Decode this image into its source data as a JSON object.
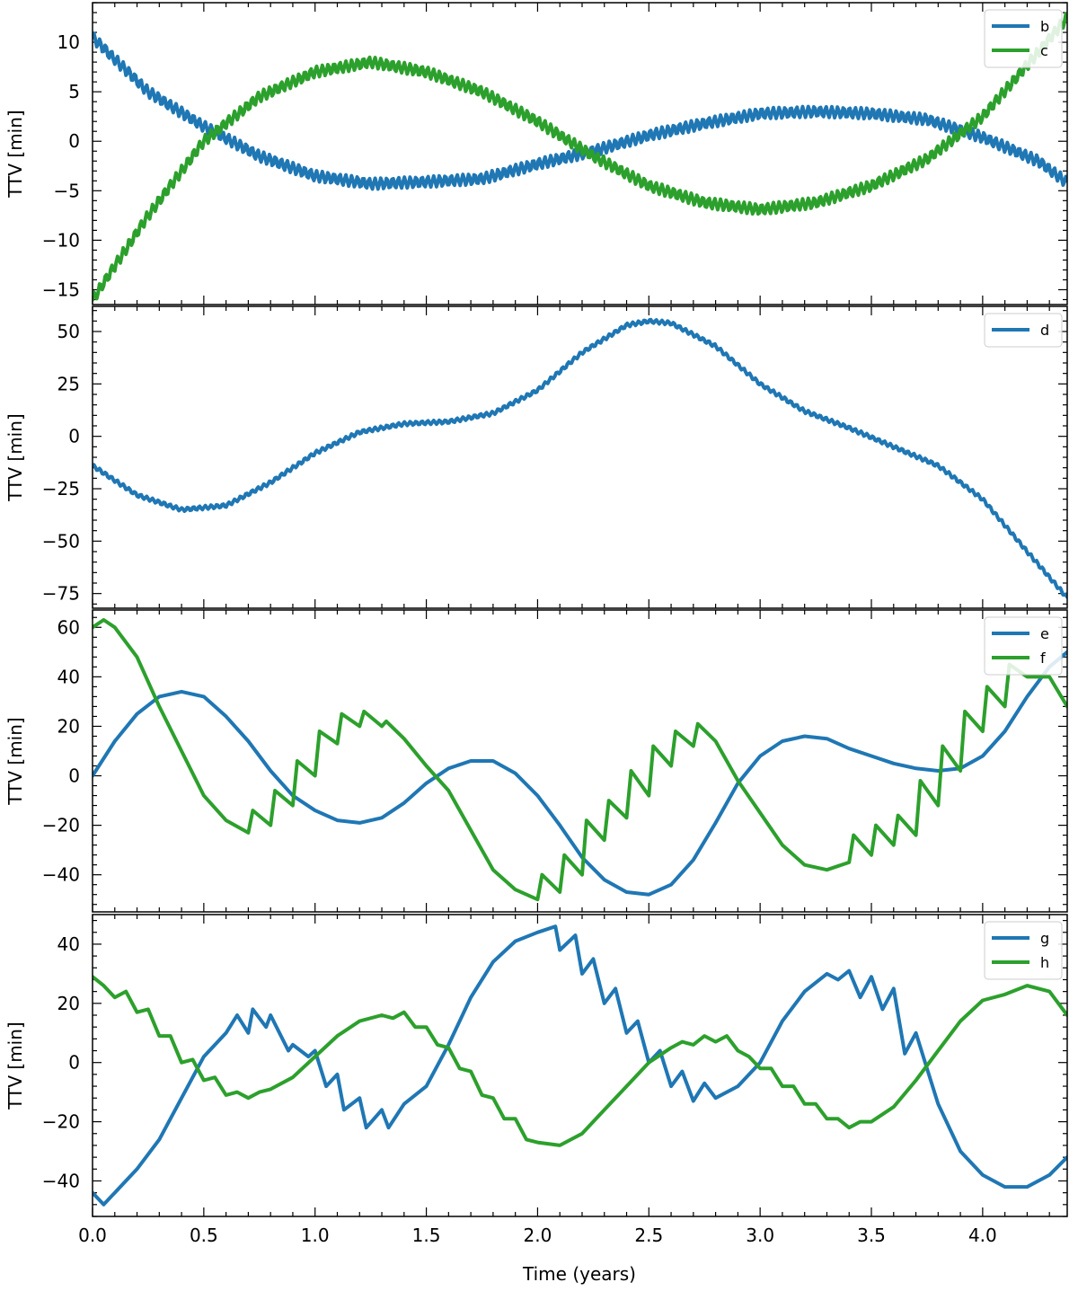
{
  "chart_data": [
    {
      "type": "line",
      "ylabel": "TTV [min]",
      "xlim": [
        0,
        4.38
      ],
      "ylim": [
        -16.5,
        14
      ],
      "yticks": [
        -15,
        -10,
        -5,
        0,
        5,
        10
      ],
      "yticklabels": [
        "−15",
        "−10",
        "−5",
        "0",
        "5",
        "10"
      ],
      "legend": "top-right",
      "series": [
        {
          "name": "b",
          "color": "#1f77b4",
          "wiggle": 0.55,
          "x": [
            0,
            0.25,
            0.5,
            0.75,
            1.0,
            1.25,
            1.5,
            1.75,
            2.0,
            2.25,
            2.5,
            2.75,
            3.0,
            3.25,
            3.5,
            3.75,
            4.0,
            4.25,
            4.38
          ],
          "y": [
            10.5,
            5,
            1.5,
            -1.5,
            -3.5,
            -4.3,
            -4.1,
            -3.8,
            -2.3,
            -1.0,
            0.6,
            1.8,
            2.8,
            3.0,
            2.8,
            2.2,
            0.4,
            -2.0,
            -4.2
          ]
        },
        {
          "name": "c",
          "color": "#2ca02c",
          "wiggle": 0.55,
          "x": [
            0,
            0.25,
            0.5,
            0.75,
            1.0,
            1.25,
            1.5,
            1.75,
            2.0,
            2.25,
            2.5,
            2.75,
            3.0,
            3.25,
            3.5,
            3.75,
            4.0,
            4.25,
            4.38
          ],
          "y": [
            -16,
            -7.5,
            0,
            4.5,
            7,
            8,
            7,
            5,
            2,
            -1.5,
            -4.5,
            -6.2,
            -6.9,
            -6.2,
            -4.5,
            -1.8,
            2.5,
            9,
            12.5
          ]
        }
      ]
    },
    {
      "type": "line",
      "ylabel": "TTV [min]",
      "xlim": [
        0,
        4.38
      ],
      "ylim": [
        -82,
        62
      ],
      "yticks": [
        -75,
        -50,
        -25,
        0,
        25,
        50
      ],
      "yticklabels": [
        "−75",
        "−50",
        "−25",
        "0",
        "25",
        "50"
      ],
      "legend": "top-right",
      "series": [
        {
          "name": "d",
          "color": "#1f77b4",
          "wiggle": 0.9,
          "x": [
            0,
            0.2,
            0.4,
            0.6,
            0.8,
            1.0,
            1.2,
            1.4,
            1.6,
            1.8,
            2.0,
            2.2,
            2.4,
            2.5,
            2.6,
            2.8,
            3.0,
            3.2,
            3.4,
            3.6,
            3.8,
            4.0,
            4.2,
            4.38
          ],
          "y": [
            -14,
            -28,
            -35,
            -33,
            -22,
            -8,
            2,
            6,
            7,
            11,
            22,
            40,
            53,
            55,
            54,
            43,
            25,
            12,
            4,
            -5,
            -14,
            -30,
            -55,
            -77
          ]
        }
      ]
    },
    {
      "type": "line",
      "ylabel": "TTV [min]",
      "xlim": [
        0,
        4.38
      ],
      "ylim": [
        -55,
        67
      ],
      "yticks": [
        -40,
        -20,
        0,
        20,
        40,
        60
      ],
      "yticklabels": [
        "−40",
        "−20",
        "0",
        "20",
        "40",
        "60"
      ],
      "legend": "top-right",
      "series": [
        {
          "name": "e",
          "color": "#1f77b4",
          "x": [
            0,
            0.1,
            0.2,
            0.3,
            0.4,
            0.5,
            0.6,
            0.7,
            0.8,
            0.9,
            1.0,
            1.1,
            1.2,
            1.3,
            1.4,
            1.5,
            1.6,
            1.7,
            1.8,
            1.9,
            2.0,
            2.1,
            2.2,
            2.3,
            2.4,
            2.5,
            2.6,
            2.7,
            2.8,
            2.9,
            3.0,
            3.1,
            3.2,
            3.3,
            3.4,
            3.5,
            3.6,
            3.7,
            3.8,
            3.9,
            4.0,
            4.1,
            4.2,
            4.3,
            4.38
          ],
          "y": [
            0,
            14,
            25,
            32,
            34,
            32,
            24,
            14,
            2,
            -8,
            -14,
            -18,
            -19,
            -17,
            -11,
            -3,
            3,
            6,
            6,
            1,
            -8,
            -20,
            -33,
            -42,
            -47,
            -48,
            -44,
            -34,
            -19,
            -3,
            8,
            14,
            16,
            15,
            11,
            8,
            5,
            3,
            2,
            3,
            8,
            18,
            32,
            44,
            50
          ]
        },
        {
          "name": "f",
          "color": "#2ca02c",
          "x": [
            0,
            0.05,
            0.1,
            0.2,
            0.3,
            0.4,
            0.5,
            0.6,
            0.7,
            0.72,
            0.8,
            0.82,
            0.9,
            0.92,
            1.0,
            1.02,
            1.1,
            1.12,
            1.2,
            1.22,
            1.3,
            1.32,
            1.4,
            1.5,
            1.6,
            1.7,
            1.8,
            1.9,
            2.0,
            2.02,
            2.1,
            2.12,
            2.2,
            2.22,
            2.3,
            2.32,
            2.4,
            2.42,
            2.5,
            2.52,
            2.6,
            2.62,
            2.7,
            2.72,
            2.8,
            2.9,
            3.0,
            3.1,
            3.2,
            3.3,
            3.4,
            3.42,
            3.5,
            3.52,
            3.6,
            3.62,
            3.7,
            3.72,
            3.8,
            3.82,
            3.9,
            3.92,
            4.0,
            4.02,
            4.1,
            4.12,
            4.2,
            4.3,
            4.38
          ],
          "y": [
            60,
            63,
            60,
            48,
            28,
            10,
            -8,
            -18,
            -23,
            -14,
            -20,
            -6,
            -12,
            6,
            0,
            18,
            13,
            25,
            20,
            26,
            20,
            22,
            15,
            4,
            -6,
            -22,
            -38,
            -46,
            -50,
            -40,
            -47,
            -32,
            -40,
            -18,
            -26,
            -10,
            -17,
            2,
            -8,
            12,
            4,
            18,
            12,
            21,
            14,
            -2,
            -15,
            -28,
            -36,
            -38,
            -35,
            -24,
            -32,
            -20,
            -28,
            -16,
            -24,
            -2,
            -12,
            12,
            2,
            26,
            18,
            36,
            28,
            45,
            40,
            40,
            28
          ]
        }
      ]
    },
    {
      "type": "line",
      "xlabel": "Time (years)",
      "ylabel": "TTV [min]",
      "xlim": [
        0,
        4.38
      ],
      "ylim": [
        -52,
        50
      ],
      "yticks": [
        -40,
        -20,
        0,
        20,
        40
      ],
      "yticklabels": [
        "−40",
        "−20",
        "0",
        "20",
        "40"
      ],
      "xticks": [
        0,
        0.5,
        1.0,
        1.5,
        2.0,
        2.5,
        3.0,
        3.5,
        4.0
      ],
      "xticklabels": [
        "0.0",
        "0.5",
        "1.0",
        "1.5",
        "2.0",
        "2.5",
        "3.0",
        "3.5",
        "4.0"
      ],
      "legend": "top-right",
      "series": [
        {
          "name": "g",
          "color": "#1f77b4",
          "x": [
            0,
            0.05,
            0.1,
            0.2,
            0.3,
            0.4,
            0.5,
            0.6,
            0.65,
            0.7,
            0.72,
            0.78,
            0.8,
            0.88,
            0.9,
            0.97,
            1.0,
            1.05,
            1.1,
            1.13,
            1.2,
            1.23,
            1.3,
            1.33,
            1.4,
            1.5,
            1.6,
            1.7,
            1.8,
            1.9,
            2.0,
            2.08,
            2.1,
            2.17,
            2.2,
            2.25,
            2.3,
            2.35,
            2.4,
            2.45,
            2.5,
            2.55,
            2.6,
            2.65,
            2.7,
            2.75,
            2.8,
            2.9,
            3.0,
            3.1,
            3.2,
            3.3,
            3.35,
            3.4,
            3.45,
            3.5,
            3.55,
            3.6,
            3.65,
            3.7,
            3.75,
            3.8,
            3.9,
            4.0,
            4.1,
            4.2,
            4.3,
            4.38
          ],
          "y": [
            -44,
            -48,
            -44,
            -36,
            -26,
            -12,
            2,
            10,
            16,
            10,
            18,
            12,
            16,
            4,
            6,
            2,
            4,
            -8,
            -4,
            -16,
            -12,
            -22,
            -16,
            -22,
            -14,
            -8,
            6,
            22,
            34,
            41,
            44,
            46,
            38,
            43,
            30,
            35,
            20,
            25,
            10,
            14,
            0,
            4,
            -8,
            -3,
            -13,
            -7,
            -12,
            -8,
            0,
            14,
            24,
            30,
            28,
            31,
            22,
            29,
            18,
            25,
            3,
            10,
            -2,
            -14,
            -30,
            -38,
            -42,
            -42,
            -38,
            -32
          ]
        },
        {
          "name": "h",
          "color": "#2ca02c",
          "x": [
            0,
            0.05,
            0.1,
            0.15,
            0.2,
            0.25,
            0.3,
            0.35,
            0.4,
            0.45,
            0.5,
            0.55,
            0.6,
            0.65,
            0.7,
            0.75,
            0.8,
            0.9,
            1.0,
            1.1,
            1.2,
            1.3,
            1.35,
            1.4,
            1.45,
            1.5,
            1.55,
            1.6,
            1.65,
            1.7,
            1.75,
            1.8,
            1.85,
            1.9,
            1.95,
            2.0,
            2.1,
            2.2,
            2.3,
            2.4,
            2.5,
            2.6,
            2.65,
            2.7,
            2.75,
            2.8,
            2.85,
            2.9,
            2.95,
            3.0,
            3.05,
            3.1,
            3.15,
            3.2,
            3.25,
            3.3,
            3.35,
            3.4,
            3.45,
            3.5,
            3.6,
            3.7,
            3.8,
            3.9,
            4.0,
            4.1,
            4.2,
            4.3,
            4.38
          ],
          "y": [
            29,
            26,
            22,
            24,
            17,
            18,
            9,
            9,
            0,
            1,
            -6,
            -5,
            -11,
            -10,
            -12,
            -10,
            -9,
            -5,
            2,
            9,
            14,
            16,
            15,
            17,
            12,
            12,
            6,
            5,
            -2,
            -3,
            -11,
            -12,
            -19,
            -19,
            -26,
            -27,
            -28,
            -24,
            -16,
            -8,
            0,
            5,
            7,
            6,
            9,
            7,
            9,
            4,
            2,
            -2,
            -2,
            -8,
            -8,
            -14,
            -14,
            -19,
            -19,
            -22,
            -20,
            -20,
            -15,
            -6,
            4,
            14,
            21,
            23,
            26,
            24,
            16
          ]
        }
      ]
    }
  ]
}
